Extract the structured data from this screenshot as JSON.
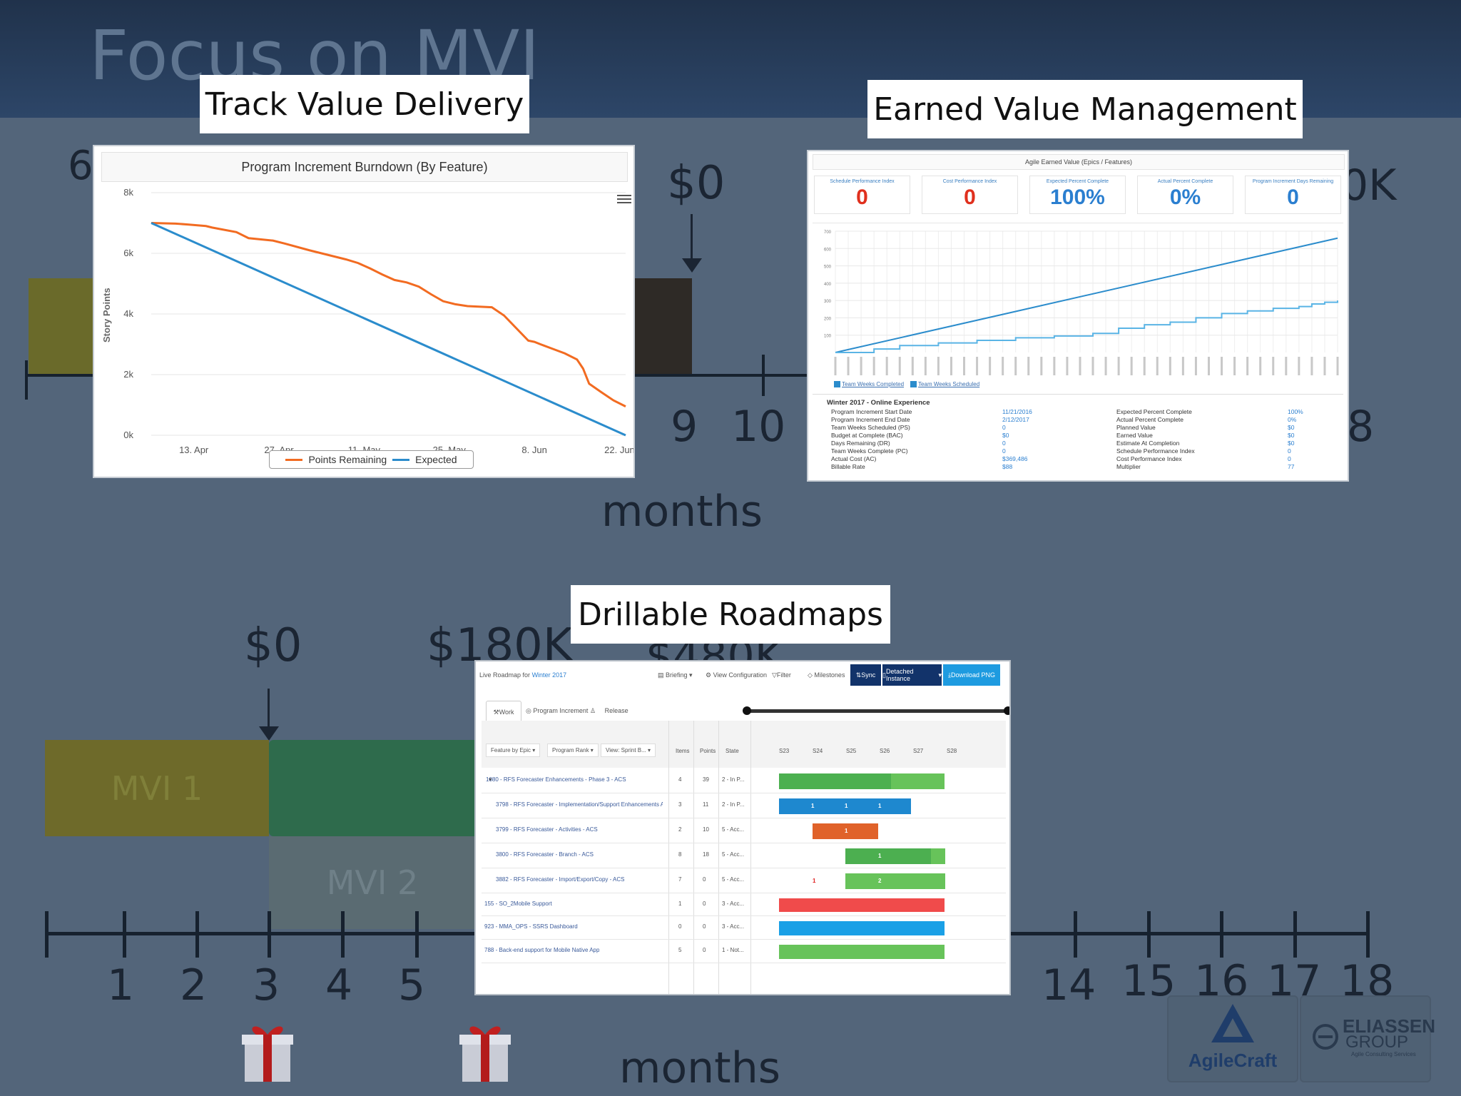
{
  "slide": {
    "title": "Focus on MVI"
  },
  "callouts": {
    "track": "Track Value Delivery",
    "earned": "Earned Value Management",
    "drill": "Drillable Roadmaps"
  },
  "background": {
    "upper_left_num": "6",
    "upper_dollar": "$0",
    "upper_right": "0K",
    "upper_9": "9",
    "upper_10": "10",
    "upper_8": "8",
    "upper_months": "months",
    "lower_dollar0": "$0",
    "lower_dollar180": "$180K",
    "lower_dollar480": "$480K",
    "mvi1": "MVI 1",
    "mvi2": "MVI 2",
    "ticks": [
      "1",
      "2",
      "3",
      "4",
      "5",
      "14",
      "15",
      "16",
      "17",
      "18"
    ],
    "lower_months": "months"
  },
  "burndown": {
    "title": "Program Increment Burndown (By Feature)",
    "ylabel": "Story Points",
    "legend_remaining": "Points Remaining",
    "legend_expected": "Expected",
    "menu_icon": "hamburger-menu-icon"
  },
  "chart_data": [
    {
      "type": "line",
      "title": "Program Increment Burndown (By Feature)",
      "xlabel": "",
      "ylabel": "Story Points",
      "x_ticks": [
        "13. Apr",
        "27. Apr",
        "11. May",
        "25. May",
        "8. Jun",
        "22. Jun"
      ],
      "y_ticks": [
        "0k",
        "2k",
        "4k",
        "6k",
        "8k"
      ],
      "ylim": [
        0,
        8000
      ],
      "x_day_range": [
        0,
        78
      ],
      "x_tick_days": [
        7,
        21,
        35,
        49,
        63,
        77
      ],
      "series": [
        {
          "name": "Points Remaining",
          "color": "#f26b21",
          "x": [
            0,
            4,
            6,
            9,
            10,
            14,
            16,
            20,
            22,
            26,
            28,
            32,
            34,
            36,
            38,
            40,
            42,
            44,
            46,
            48,
            50,
            52,
            56,
            58,
            62,
            63,
            64,
            66,
            68,
            70,
            71,
            72,
            74,
            76,
            78
          ],
          "y": [
            7000,
            6980,
            6950,
            6900,
            6850,
            6700,
            6500,
            6420,
            6320,
            6100,
            6000,
            5800,
            5680,
            5500,
            5300,
            5120,
            5040,
            4900,
            4650,
            4420,
            4320,
            4260,
            4220,
            3950,
            3120,
            3080,
            3000,
            2850,
            2700,
            2500,
            2200,
            1700,
            1420,
            1150,
            950
          ]
        },
        {
          "name": "Expected",
          "color": "#2b8ccc",
          "x": [
            0,
            78
          ],
          "y": [
            7000,
            0
          ]
        }
      ],
      "legend": "bottom-center",
      "grid": true
    },
    {
      "type": "line",
      "title": "",
      "x_count": 40,
      "y_ticks": [
        "100",
        "200",
        "300",
        "400",
        "500",
        "600",
        "700"
      ],
      "ylim": [
        0,
        700
      ],
      "series": [
        {
          "name": "Team Weeks Scheduled",
          "color": "#2b8ccc",
          "x": [
            0,
            39
          ],
          "y": [
            0,
            660
          ]
        },
        {
          "name": "Team Weeks Completed",
          "color": "#5ab4e5",
          "x": [
            0,
            3,
            5,
            8,
            11,
            14,
            17,
            20,
            22,
            24,
            26,
            28,
            30,
            32,
            34,
            36,
            37,
            38,
            39
          ],
          "y": [
            0,
            20,
            40,
            55,
            70,
            85,
            95,
            110,
            140,
            160,
            175,
            200,
            225,
            240,
            255,
            265,
            280,
            290,
            300
          ]
        }
      ],
      "legend": "bottom-left",
      "grid": true
    }
  ],
  "evm": {
    "header": "Agile Earned Value (Epics / Features)",
    "kpis": [
      {
        "label": "Schedule Performance Index",
        "value": "0",
        "color": "#e0301e"
      },
      {
        "label": "Cost Performance Index",
        "value": "0",
        "color": "#e0301e"
      },
      {
        "label": "Expected Percent Complete",
        "value": "100%",
        "color": "#2b7fd0"
      },
      {
        "label": "Actual Percent Complete",
        "value": "0%",
        "color": "#2b7fd0"
      },
      {
        "label": "Program Increment Days Remaining",
        "value": "0",
        "color": "#2b7fd0"
      }
    ],
    "legend_completed": "Team Weeks Completed",
    "legend_scheduled": "Team Weeks Scheduled",
    "section_title": "Winter 2017 - Online Experience",
    "left_labels": [
      "Program Increment Start Date",
      "Program Increment End Date",
      "Team Weeks Scheduled (PS)",
      "Budget at Complete (BAC)",
      "Days Remaining (DR)",
      "Team Weeks Complete (PC)",
      "Actual Cost (AC)",
      "Billable Rate"
    ],
    "left_values": [
      "11/21/2016",
      "2/12/2017",
      "0",
      "$0",
      "0",
      "0",
      "$369,486",
      "$88"
    ],
    "right_labels": [
      "Expected Percent Complete",
      "Actual Percent Complete",
      "Planned Value",
      "Earned Value",
      "Estimate At Completion",
      "Schedule Performance Index",
      "Cost Performance Index",
      "Multiplier"
    ],
    "right_values": [
      "100%",
      "0%",
      "$0",
      "$0",
      "$0",
      "0",
      "0",
      "77"
    ]
  },
  "roadmap": {
    "title_prefix": "Live Roadmap for",
    "title_link": "Winter 2017",
    "toolbar": [
      "Briefing",
      "View Configuration",
      "Filter",
      "Milestones",
      "Sync",
      "Detached Instance",
      "Download PNG"
    ],
    "tabs": [
      "Work",
      "Program Increment",
      "Release"
    ],
    "filters": [
      "Feature by Epic",
      "Program Rank",
      "View: Sprint B..."
    ],
    "columns": [
      "Items",
      "Points",
      "State"
    ],
    "sprints": [
      "S23",
      "S24",
      "S25",
      "S26",
      "S27",
      "S28"
    ],
    "rows": [
      {
        "name": "1080 - RFS Forecaster Enhancements - Phase 3 - ACS",
        "items": "4",
        "points": "39",
        "state": "2 - In P..."
      },
      {
        "name": "3798 - RFS Forecaster - Implementation/Support Enhancements ACS",
        "items": "3",
        "points": "11",
        "state": "2 - In P..."
      },
      {
        "name": "3799 - RFS Forecaster - Activities - ACS",
        "items": "2",
        "points": "10",
        "state": "5 - Acc..."
      },
      {
        "name": "3800 - RFS Forecaster - Branch - ACS",
        "items": "8",
        "points": "18",
        "state": "5 - Acc..."
      },
      {
        "name": "3882 - RFS Forecaster - Import/Export/Copy - ACS",
        "items": "7",
        "points": "0",
        "state": "5 - Acc..."
      },
      {
        "name": "155 - SO_2Mobile Support",
        "items": "1",
        "points": "0",
        "state": "3 - Acc..."
      },
      {
        "name": "923 - MMA_OPS - SSRS Dashboard",
        "items": "0",
        "points": "0",
        "state": "3 - Acc..."
      },
      {
        "name": "788 - Back-end support for Mobile Native App",
        "items": "5",
        "points": "0",
        "state": "1 - Not..."
      }
    ],
    "bar_labels": {
      "r1": [
        "1",
        "1",
        "1"
      ],
      "r2": [
        "1"
      ],
      "r3": [
        "1"
      ],
      "r4a": "1",
      "r4b": "2"
    }
  },
  "logos": {
    "agilecraft": "AgileCraft",
    "eliassen1": "ELIASSEN",
    "eliassen2": "GROUP",
    "eliassen_tag": "Agile Consulting Services"
  },
  "colors": {
    "bg": "#53657a",
    "orange": "#f26b21",
    "blue": "#2b8ccc",
    "green": "#67c35a",
    "red": "#f04b4b"
  }
}
